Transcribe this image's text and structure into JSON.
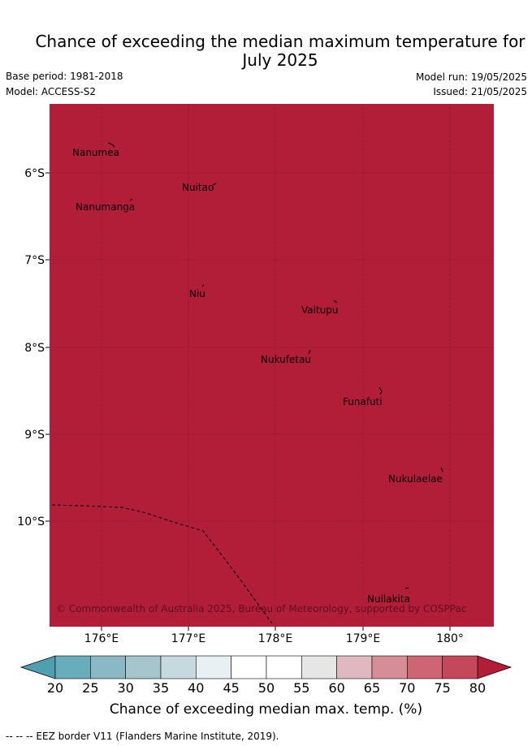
{
  "title": "Chance of exceeding the median maximum temperature for\nJuly 2025",
  "meta": {
    "base_period": "Base period: 1981-2018",
    "model": "Model: ACCESS-S2",
    "model_run": "Model run: 19/05/2025",
    "issued": "Issued: 21/05/2025"
  },
  "map": {
    "fill_color": "#b21e38",
    "lon_ticks": [
      "176°E",
      "177°E",
      "178°E",
      "179°E",
      "180°"
    ],
    "lat_ticks": [
      "6°S",
      "7°S",
      "8°S",
      "9°S",
      "10°S"
    ],
    "islands": [
      "Nanumea",
      "Nuitao",
      "Nanumanga",
      "Niu",
      "Vaitupu",
      "Nukufetau",
      "Funafuti",
      "Nukulaelae",
      "Nuilakita"
    ],
    "credit": "© Commonwealth of Australia 2025, Bureau of Meteorology, supported by COSPPac"
  },
  "colorbar": {
    "label": "Chance of exceeding median max. temp. (%)",
    "ticks": [
      "20",
      "25",
      "30",
      "35",
      "40",
      "45",
      "50",
      "55",
      "60",
      "65",
      "70",
      "75",
      "80"
    ],
    "colors": [
      "#68adbb",
      "#8ab8c4",
      "#a7c5cc",
      "#c6d9de",
      "#e8f0f3",
      "#ffffff",
      "#ffffff",
      "#e6e6e6",
      "#dfb8c0",
      "#d68d96",
      "#cd6572",
      "#c4485a"
    ],
    "low_extend_color": "#4ea0b0",
    "high_extend_color": "#b21e38"
  },
  "footer": "--  --  -- EEZ border V11 (Flanders Marine Institute, 2019)."
}
